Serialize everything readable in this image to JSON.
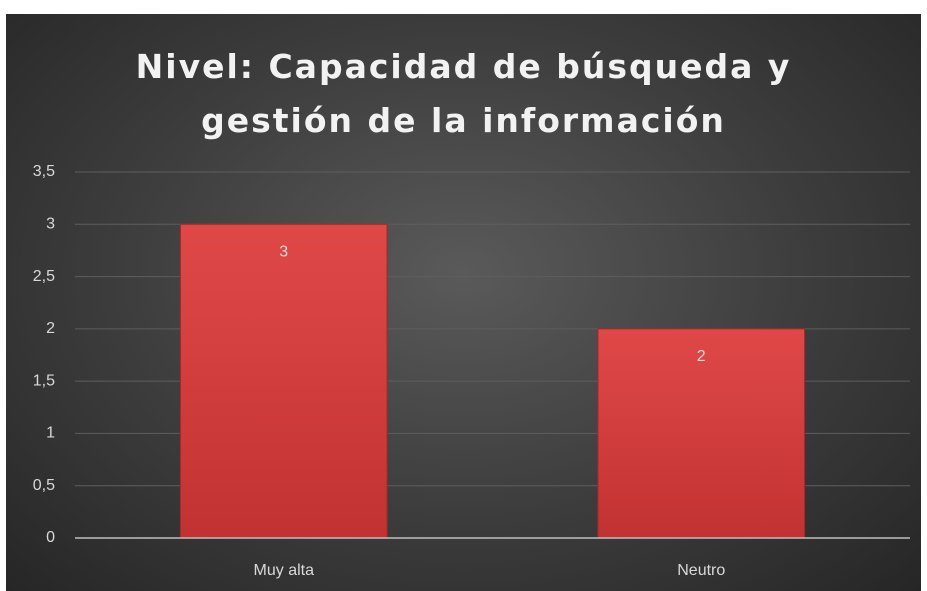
{
  "chart_data": {
    "type": "bar",
    "title": "Nivel: Capacidad de búsqueda y gestión de la información",
    "categories": [
      "Muy alta",
      "Neutro"
    ],
    "values": [
      3,
      2
    ],
    "color": "#d63c3c",
    "ylim": [
      0,
      3.5
    ],
    "yticks": [
      0,
      {
        "value": 0.5,
        "label": "0,5"
      },
      1,
      {
        "value": 1.5,
        "label": "1,5"
      },
      2,
      {
        "value": 2.5,
        "label": "2,5"
      },
      3,
      {
        "value": 3.5,
        "label": "3,5"
      }
    ],
    "grid": true
  }
}
